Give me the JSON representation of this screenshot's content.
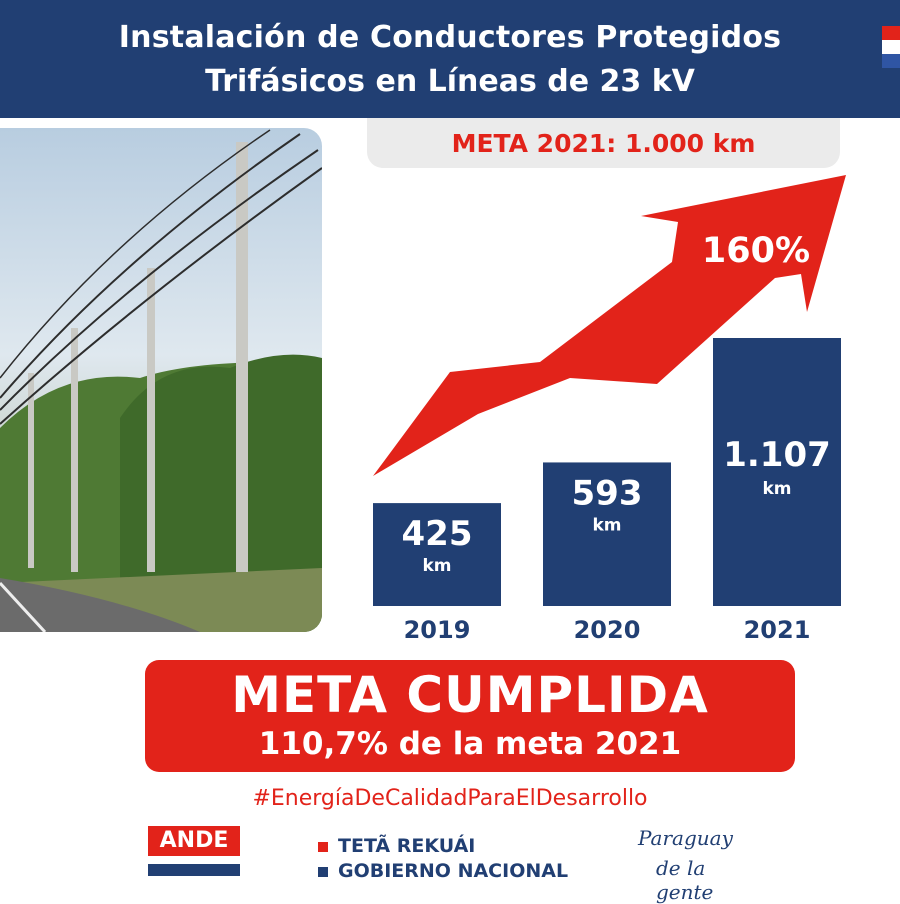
{
  "header": {
    "title_line1": "Instalación de Conductores Protegidos",
    "title_line2": "Trifásicos en Líneas de 23 kV"
  },
  "goal_label": "META 2021: 1.000 km",
  "growth_label": "160%",
  "colors": {
    "navy": "#213f73",
    "red": "#e2231a",
    "grey": "#ebebeb"
  },
  "chart_data": {
    "type": "bar",
    "title": "Instalación de Conductores Protegidos Trifásicos en Líneas de 23 kV",
    "categories": [
      "2019",
      "2020",
      "2021"
    ],
    "values": [
      425,
      593,
      1107
    ],
    "value_labels": [
      "425",
      "593",
      "1.107"
    ],
    "unit": "km",
    "goal_2021": 1000,
    "annotation": "160%",
    "xlabel": "",
    "ylabel": "",
    "ylim": [
      0,
      1150
    ],
    "grid": false,
    "legend": "none"
  },
  "result": {
    "headline": "META CUMPLIDA",
    "subline": "110,7% de la meta 2021"
  },
  "hashtag": "#EnergíaDeCalidadParaElDesarrollo",
  "footer": {
    "ande_logo": "ANDE",
    "gov_line1": "TETÃ REKUÁI",
    "gov_line2": "GOBIERNO NACIONAL",
    "brand_line1": "Paraguay",
    "brand_line2": "de la gente"
  }
}
